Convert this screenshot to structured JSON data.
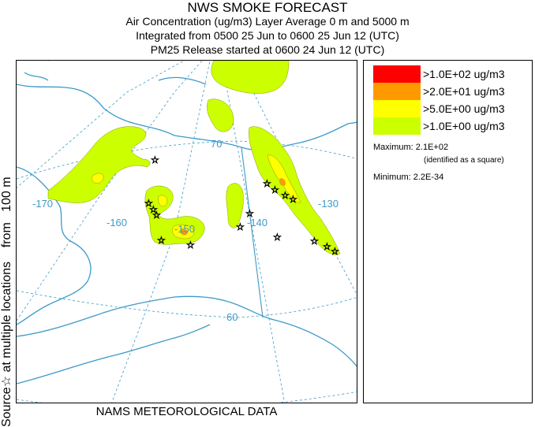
{
  "title": {
    "line1": "NWS SMOKE FORECAST",
    "line2": "Air Concentration (ug/m3) Layer Average    0 m and  5000 m",
    "line3": "Integrated from 0500 25 Jun to 0600 25 Jun 12 (UTC)",
    "line4": "PM25 Release started at 0600 24 Jun 12 (UTC)"
  },
  "side_label": {
    "source": "Source",
    "mid": " at multiple locations ",
    "height": "   from   100 m"
  },
  "footer": "NAMS METEOROLOGICAL DATA",
  "legend": {
    "items": [
      {
        "label": ">1.0E+02 ug/m3",
        "color": "#ff0000"
      },
      {
        "label": ">2.0E+01 ug/m3",
        "color": "#ff9900"
      },
      {
        "label": ">5.0E+00 ug/m3",
        "color": "#ffff00"
      },
      {
        "label": ">1.0E+00 ug/m3",
        "color": "#ccff00"
      }
    ],
    "maximum_label": "Maximum: 2.1E+02",
    "maximum_note": "(identified as a square)",
    "minimum_label": "Minimum: 2.2E-34"
  },
  "map": {
    "longitude_labels": [
      "-170",
      "-160",
      "-150",
      "-140",
      "-130"
    ],
    "latitude_labels": [
      "70",
      "60"
    ],
    "colors": {
      "coast": "#3d9ac9",
      "graticule": "#3d9ac9",
      "level1": "#ccff00",
      "level2": "#ffff00",
      "level3": "#ff9900"
    }
  }
}
